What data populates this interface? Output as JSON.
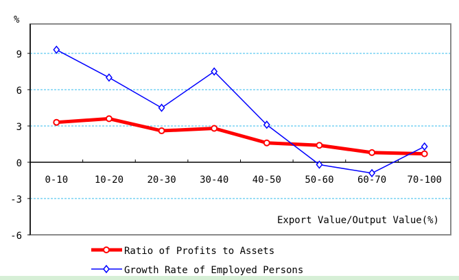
{
  "chart_data": {
    "type": "line",
    "ylabel": "%",
    "xlabel": "Export Value/Output Value(%)",
    "categories": [
      "0-10",
      "10-20",
      "20-30",
      "30-40",
      "40-50",
      "50-60",
      "60-70",
      "70-100"
    ],
    "ylim": [
      -6,
      12
    ],
    "yticks": [
      "-6",
      "-3",
      "0",
      "3",
      "6",
      "9"
    ],
    "grid": "horizontal dashed",
    "legend": "bottom",
    "series": [
      {
        "name": "Ratio of Profits to Assets",
        "color": "#ff0000",
        "marker": "circle",
        "values": [
          3.3,
          3.6,
          2.6,
          2.8,
          1.6,
          1.4,
          0.8,
          0.7
        ]
      },
      {
        "name": "Growth Rate of Employed Persons",
        "color": "#0000ff",
        "marker": "diamond",
        "values": [
          9.3,
          7.0,
          4.5,
          7.5,
          3.1,
          -0.2,
          -0.9,
          1.3
        ]
      }
    ]
  }
}
